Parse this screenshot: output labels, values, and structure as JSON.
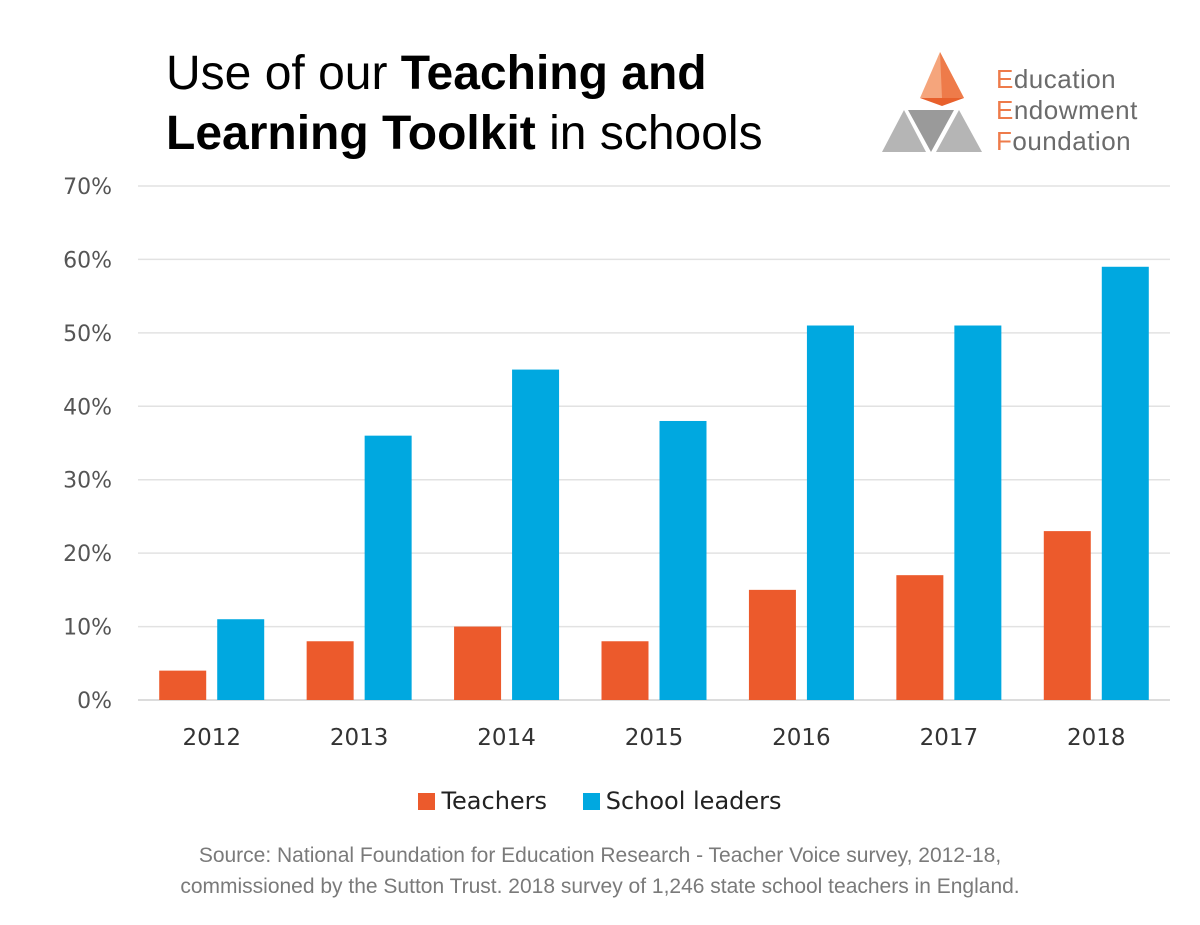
{
  "title": {
    "line1_normal": "Use of our ",
    "line1_bold": "Teaching and",
    "line2_bold": "Learning Toolkit",
    "line2_normal": " in schools"
  },
  "logo": {
    "line1_cap": "E",
    "line1_rest": "ducation",
    "line2_cap": "E",
    "line2_rest": "ndowment",
    "line3_cap": "F",
    "line3_rest": "oundation",
    "colors": {
      "orange": "#ee7b4a",
      "orange_light": "#f5a57c",
      "grey": "#b0b0b0"
    }
  },
  "chart_data": {
    "type": "bar",
    "categories": [
      "2012",
      "2013",
      "2014",
      "2015",
      "2016",
      "2017",
      "2018"
    ],
    "series": [
      {
        "name": "Teachers",
        "color": "#ec5a2c",
        "values": [
          4,
          8,
          10,
          8,
          15,
          17,
          23
        ]
      },
      {
        "name": "School leaders",
        "color": "#00a8e0",
        "values": [
          11,
          36,
          45,
          38,
          51,
          51,
          59
        ]
      }
    ],
    "ylim": [
      0,
      70
    ],
    "yticks": [
      0,
      10,
      20,
      30,
      40,
      50,
      60,
      70
    ],
    "ytick_labels": [
      "0%",
      "10%",
      "20%",
      "30%",
      "40%",
      "50%",
      "60%",
      "70%"
    ],
    "grid": true,
    "legend_position": "bottom"
  },
  "source": {
    "line1": "Source: National  Foundation for Education Research - Teacher Voice survey, 2012-18,",
    "line2": "commissioned by the Sutton Trust. 2018 survey of 1,246 state school teachers in England."
  }
}
